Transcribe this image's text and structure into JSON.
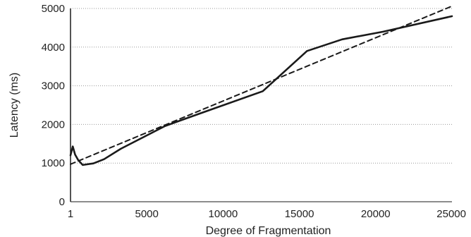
{
  "chart_data": {
    "type": "line",
    "title": "",
    "xlabel": "Degree of Fragmentation",
    "ylabel": "Latency (ms)",
    "xlim": [
      1,
      25000
    ],
    "ylim": [
      0,
      5000
    ],
    "x_ticks": [
      {
        "value": 1,
        "label": "1"
      },
      {
        "value": 5000,
        "label": "5000"
      },
      {
        "value": 10000,
        "label": "10000"
      },
      {
        "value": 15000,
        "label": "15000"
      },
      {
        "value": 20000,
        "label": "20000"
      },
      {
        "value": 25000,
        "label": "25000"
      }
    ],
    "y_ticks": [
      {
        "value": 0,
        "label": "0"
      },
      {
        "value": 1000,
        "label": "1000"
      },
      {
        "value": 2000,
        "label": "2000"
      },
      {
        "value": 3000,
        "label": "3000"
      },
      {
        "value": 4000,
        "label": "4000"
      },
      {
        "value": 5000,
        "label": "5000"
      }
    ],
    "grid": "horizontal dotted",
    "legend": "none",
    "series": [
      {
        "style": "solid",
        "color": "#1a1a1a",
        "points": [
          [
            1,
            1200
          ],
          [
            150,
            1430
          ],
          [
            300,
            1220
          ],
          [
            500,
            1080
          ],
          [
            800,
            950
          ],
          [
            1500,
            990
          ],
          [
            2200,
            1100
          ],
          [
            3300,
            1370
          ],
          [
            6200,
            1960
          ],
          [
            8600,
            2300
          ],
          [
            12600,
            2860
          ],
          [
            15500,
            3900
          ],
          [
            17800,
            4200
          ],
          [
            20500,
            4400
          ],
          [
            25000,
            4800
          ]
        ]
      },
      {
        "style": "dashed",
        "color": "#1a1a1a",
        "points": [
          [
            1,
            970
          ],
          [
            25000,
            5060
          ]
        ]
      }
    ]
  }
}
